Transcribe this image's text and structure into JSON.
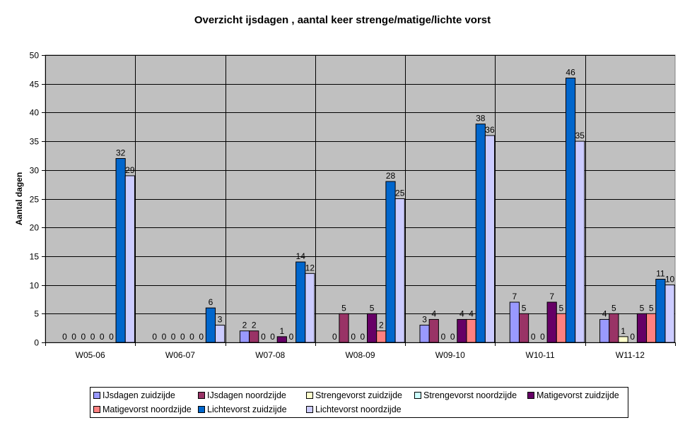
{
  "chart_data": {
    "type": "bar",
    "title": "Overzicht ijsdagen , aantal keer strenge/matige/lichte vorst",
    "xlabel": "",
    "ylabel": "Aantal dagen",
    "ylim": [
      0,
      50
    ],
    "yticks": [
      0,
      5,
      10,
      15,
      20,
      25,
      30,
      35,
      40,
      45,
      50
    ],
    "grid": true,
    "legend_position": "bottom",
    "categories": [
      "W05-06",
      "W06-07",
      "W07-08",
      "W08-09",
      "W09-10",
      "W10-11",
      "W11-12"
    ],
    "series": [
      {
        "name": "IJsdagen zuidzijde",
        "color": "#9999ff",
        "values": [
          0,
          0,
          2,
          0,
          3,
          7,
          4
        ]
      },
      {
        "name": "IJsdagen noordzijde",
        "color": "#993366",
        "values": [
          0,
          0,
          2,
          5,
          4,
          5,
          5
        ]
      },
      {
        "name": "Strengevorst zuidzijde",
        "color": "#ffffcc",
        "values": [
          0,
          0,
          0,
          0,
          0,
          0,
          1
        ]
      },
      {
        "name": "Strengevorst noordzijde",
        "color": "#ccffff",
        "values": [
          0,
          0,
          0,
          0,
          0,
          0,
          0
        ]
      },
      {
        "name": "Matigevorst zuidzijde",
        "color": "#660066",
        "values": [
          0,
          0,
          1,
          5,
          4,
          7,
          5
        ]
      },
      {
        "name": "Matigevorst noordzijde",
        "color": "#ff8080",
        "values": [
          0,
          0,
          0,
          2,
          4,
          5,
          5
        ]
      },
      {
        "name": "Lichtevorst zuidzijde",
        "color": "#0066cc",
        "values": [
          32,
          6,
          14,
          28,
          38,
          46,
          11
        ]
      },
      {
        "name": "Lichtevorst noordzijde",
        "color": "#ccccff",
        "values": [
          29,
          3,
          12,
          25,
          36,
          35,
          10
        ]
      }
    ]
  }
}
